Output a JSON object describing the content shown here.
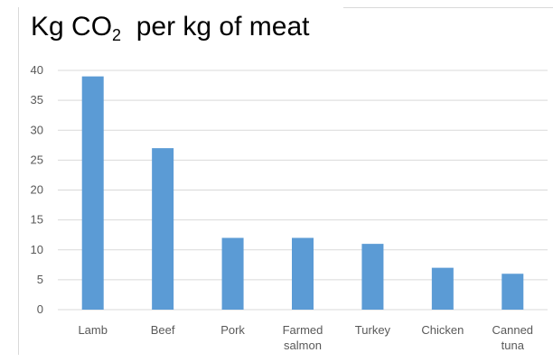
{
  "title": {
    "prefix": "Kg CO",
    "subscript": "2",
    "suffix": "  per kg of meat"
  },
  "chart_data": {
    "type": "bar",
    "categories": [
      [
        "Lamb"
      ],
      [
        "Beef"
      ],
      [
        "Pork"
      ],
      [
        "Farmed",
        "salmon"
      ],
      [
        "Turkey"
      ],
      [
        "Chicken"
      ],
      [
        "Canned",
        "tuna"
      ]
    ],
    "values": [
      39,
      27,
      12,
      12,
      11,
      7,
      6
    ],
    "ylim": [
      0,
      40
    ],
    "yticks": [
      0,
      5,
      10,
      15,
      20,
      25,
      30,
      35,
      40
    ],
    "grid": true,
    "legend": false,
    "bar_color": "#5b9bd5",
    "grid_color": "#d9d9d9"
  }
}
